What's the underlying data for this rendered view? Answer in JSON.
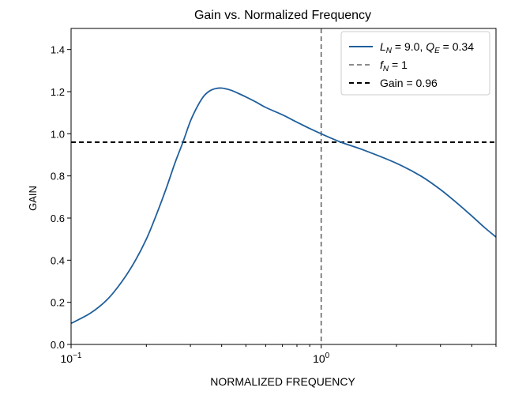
{
  "chart_data": {
    "type": "line",
    "title": "Gain vs. Normalized Frequency",
    "xlabel": "NORMALIZED FREQUENCY",
    "ylabel": "GAIN",
    "xscale": "log",
    "xlim": [
      0.1,
      5.0
    ],
    "ylim": [
      0.0,
      1.5
    ],
    "x_ticks": [
      {
        "value": 0.1,
        "base": "10",
        "exp": "−1"
      },
      {
        "value": 1.0,
        "base": "10",
        "exp": "0"
      }
    ],
    "y_ticks": [
      "0.0",
      "0.2",
      "0.4",
      "0.6",
      "0.8",
      "1.0",
      "1.2",
      "1.4"
    ],
    "grid": false,
    "legend_position": "top-right",
    "series": [
      {
        "name": "L_N = 9.0, Q_E = 0.34",
        "legend": {
          "l_sym": "L",
          "l_sub": "N",
          "l_val": " = 9.0, ",
          "q_sym": "Q",
          "q_sub": "E",
          "q_val": " = 0.34"
        },
        "color": "#1f5f9c",
        "style": "solid",
        "x": [
          0.1,
          0.12,
          0.14,
          0.16,
          0.18,
          0.2,
          0.22,
          0.24,
          0.26,
          0.28,
          0.3,
          0.32,
          0.34,
          0.36,
          0.38,
          0.4,
          0.42,
          0.44,
          0.46,
          0.5,
          0.55,
          0.6,
          0.7,
          0.8,
          0.9,
          1.0,
          1.2,
          1.5,
          2.0,
          2.5,
          3.0,
          3.5,
          4.0,
          4.5,
          5.0
        ],
        "y": [
          0.1,
          0.15,
          0.215,
          0.3,
          0.395,
          0.5,
          0.62,
          0.74,
          0.86,
          0.96,
          1.06,
          1.13,
          1.18,
          1.205,
          1.215,
          1.217,
          1.212,
          1.205,
          1.195,
          1.175,
          1.15,
          1.125,
          1.09,
          1.055,
          1.025,
          1.0,
          0.96,
          0.92,
          0.86,
          0.8,
          0.735,
          0.67,
          0.61,
          0.555,
          0.51
        ]
      },
      {
        "name": "f_N = 1",
        "legend": {
          "sym": "f",
          "sub": "N",
          "val": " = 1"
        },
        "color": "#666666",
        "style": "dashed",
        "orientation": "vertical",
        "x_value": 1.0
      },
      {
        "name": "Gain = 0.96",
        "legend": {
          "text": "Gain = 0.96"
        },
        "color": "#000000",
        "style": "dashed",
        "orientation": "horizontal",
        "y_value": 0.96
      }
    ]
  }
}
